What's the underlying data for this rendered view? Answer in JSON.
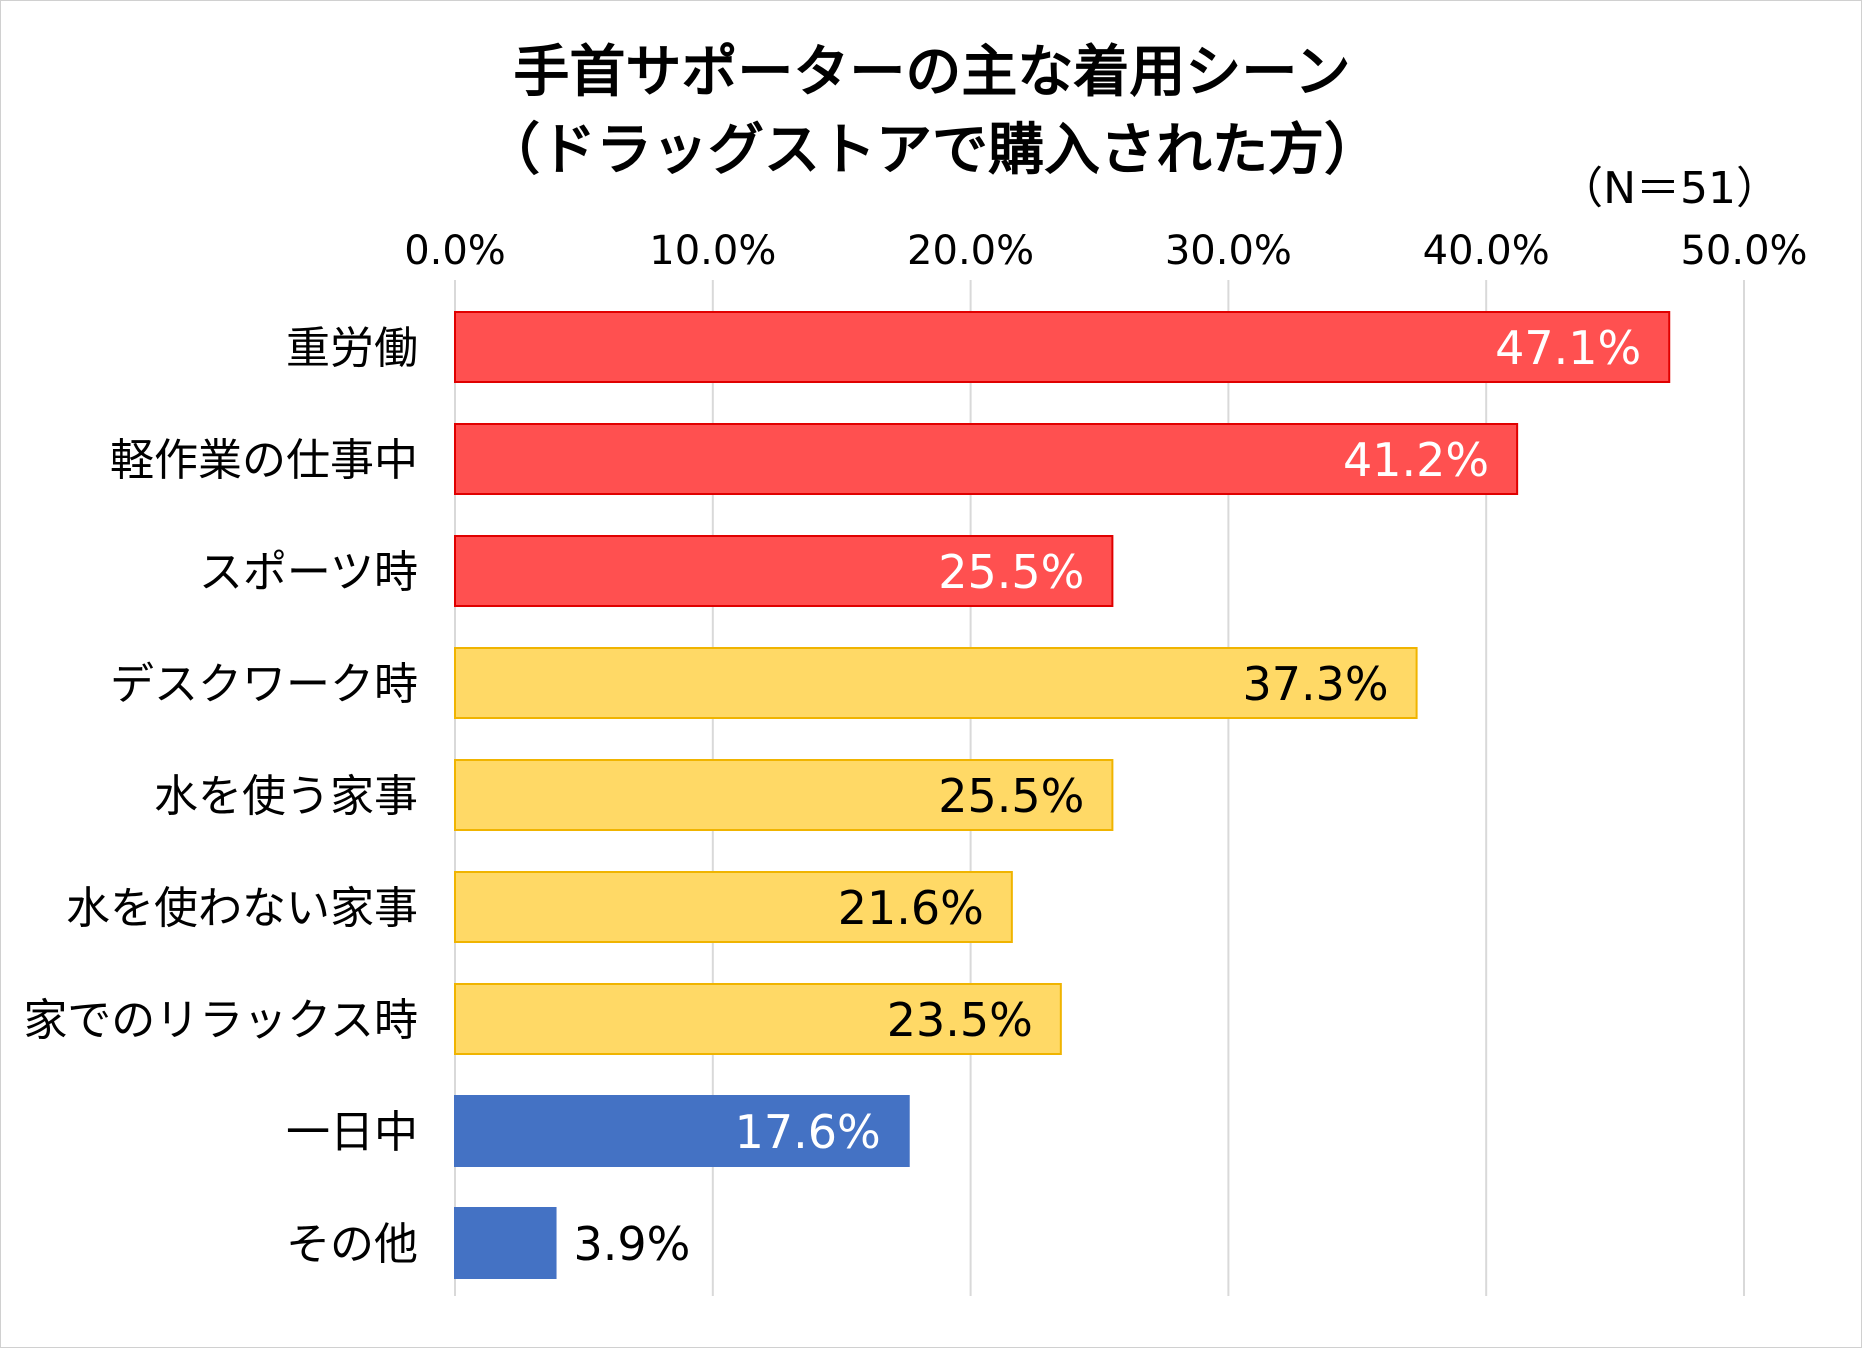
{
  "chart_data": {
    "type": "bar",
    "orientation": "horizontal",
    "title": "手首サポーターの主な着用シーン",
    "subtitle": "（ドラッグストアで購入された方）",
    "note": "（N＝51）",
    "xlim": [
      0,
      50
    ],
    "xticks": [
      "0.0%",
      "10.0%",
      "20.0%",
      "30.0%",
      "40.0%",
      "50.0%"
    ],
    "grid": true,
    "legend": "none",
    "categories": [
      "重労働",
      "軽作業の仕事中",
      "スポーツ時",
      "デスクワーク時",
      "水を使う家事",
      "水を使わない家事",
      "家でのリラックス時",
      "一日中",
      "その他"
    ],
    "values": [
      47.1,
      41.2,
      25.5,
      37.3,
      25.5,
      21.6,
      23.5,
      17.6,
      3.9
    ],
    "labels": [
      "47.1%",
      "41.2%",
      "25.5%",
      "37.3%",
      "25.5%",
      "21.6%",
      "23.5%",
      "17.6%",
      "3.9%"
    ],
    "bar_colors": [
      "#FF5050",
      "#FF5050",
      "#FF5050",
      "#FFD966",
      "#FFD966",
      "#FFD966",
      "#FFD966",
      "#4472C4",
      "#4472C4"
    ],
    "border_colors": [
      "#E00000",
      "#E00000",
      "#E00000",
      "#F0B400",
      "#F0B400",
      "#F0B400",
      "#F0B400",
      "#4472C4",
      "#4472C4"
    ],
    "label_colors": [
      "#FFFFFF",
      "#FFFFFF",
      "#FFFFFF",
      "#000000",
      "#000000",
      "#000000",
      "#000000",
      "#FFFFFF",
      "#000000"
    ],
    "grid_color": "#D9D9D9"
  }
}
